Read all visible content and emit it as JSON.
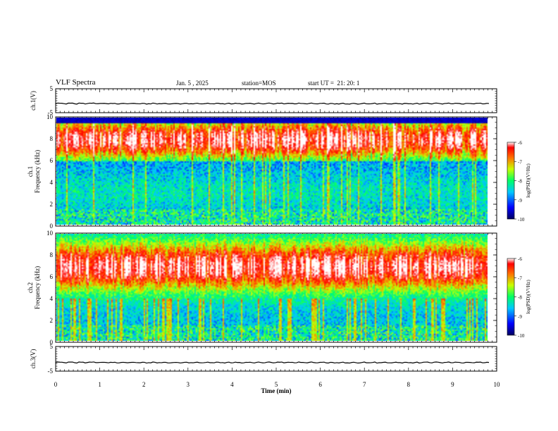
{
  "header": {
    "title": "VLF Spectra",
    "date": "Jan. 5 , 2025",
    "station": "station=MOS",
    "start": "start UT =  21: 20: 1"
  },
  "chart_data": [
    {
      "type": "line",
      "panel": "ch1-waveform",
      "ylabel": "ch.1(V)",
      "ylim": [
        -5,
        5
      ],
      "yticks": [
        "5",
        "-5"
      ],
      "xlim": [
        0,
        10
      ],
      "baseline_value": -1.2
    },
    {
      "type": "heatmap",
      "panel": "ch1-spectrogram",
      "ylabel": "ch.1\nFrequency (kHz)",
      "ylim": [
        0,
        10
      ],
      "yticks": [
        "0",
        "2",
        "4",
        "6",
        "8",
        "10"
      ],
      "xlim": [
        0,
        9.85
      ],
      "colorbar": {
        "label": "log(PSD)(V²/Hz)",
        "range": [
          -10,
          -6
        ],
        "ticks": [
          "-6",
          "-7",
          "-8",
          "-9",
          "-10"
        ]
      }
    },
    {
      "type": "heatmap",
      "panel": "ch2-spectrogram",
      "ylabel": "ch.2\nFrequency (kHz)",
      "ylim": [
        0,
        10
      ],
      "yticks": [
        "0",
        "2",
        "4",
        "6",
        "8",
        "10"
      ],
      "xlim": [
        0,
        9.85
      ],
      "colorbar": {
        "label": "log(PSD)(V²/Hz)",
        "range": [
          -10,
          -6
        ],
        "ticks": [
          "-6",
          "-7",
          "-8",
          "-9",
          "-10"
        ]
      }
    },
    {
      "type": "line",
      "panel": "ch3-waveform",
      "ylabel": "ch.3(V)",
      "ylim": [
        -5,
        5
      ],
      "yticks": [
        "5",
        "-5"
      ],
      "xlim": [
        0,
        10
      ],
      "baseline_value": -1.5,
      "xlabel": "Time (min)",
      "xticks": [
        "0",
        "1",
        "2",
        "3",
        "4",
        "5",
        "6",
        "7",
        "8",
        "9",
        "10"
      ]
    }
  ],
  "colors": {
    "colormap": [
      "#000060",
      "#0000ff",
      "#00c8ff",
      "#00ff66",
      "#c8ff00",
      "#ff7000",
      "#ff0000",
      "#ffffff"
    ]
  }
}
